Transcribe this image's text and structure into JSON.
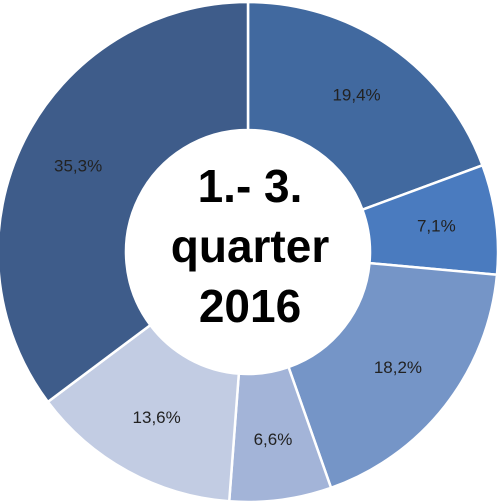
{
  "chart_data": {
    "type": "donut",
    "values": [
      19.4,
      7.1,
      18.2,
      6.6,
      13.6,
      35.3
    ],
    "value_labels": [
      "19,4%",
      "7,1%",
      "18,2%",
      "6,6%",
      "13,6%",
      "35,3%"
    ],
    "colors": [
      "#41699f",
      "#4a7bbf",
      "#7595c7",
      "#a3b4d8",
      "#c2cce3",
      "#3e5c8a"
    ],
    "center_text": [
      "1.- 3.",
      "quarter",
      "2016"
    ]
  }
}
